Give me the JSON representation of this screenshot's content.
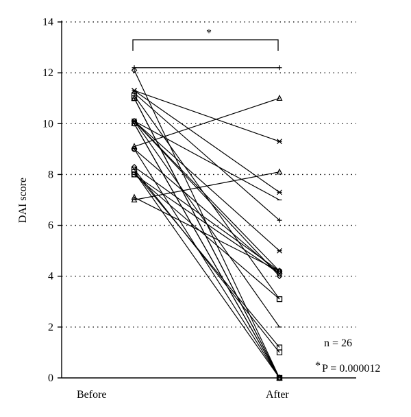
{
  "chart_data": {
    "type": "line",
    "ylabel": "DAI score",
    "xlabel": "",
    "categories": [
      "Before",
      "After"
    ],
    "ylim": [
      0,
      14
    ],
    "yticks": [
      "0",
      "2",
      "4",
      "6",
      "8",
      "10",
      "12",
      "14"
    ],
    "grid": true,
    "significance": {
      "marker": "*",
      "between": [
        "Before",
        "After"
      ]
    },
    "annotations": {
      "n": "n = 26",
      "p_star": "*",
      "p": "P = 0.000012"
    },
    "pairs": [
      {
        "before": 12.2,
        "after": 12.2,
        "marker": "plus"
      },
      {
        "before": 12.1,
        "after": 0.0,
        "marker": "diamond"
      },
      {
        "before": 11.3,
        "after": 9.3,
        "marker": "x"
      },
      {
        "before": 11.3,
        "after": 7.3,
        "marker": "x"
      },
      {
        "before": 11.2,
        "after": 6.2,
        "marker": "plus"
      },
      {
        "before": 11.1,
        "after": 3.1,
        "marker": "square"
      },
      {
        "before": 11.0,
        "after": 0.0,
        "marker": "triangle"
      },
      {
        "before": 11.0,
        "after": 0.0,
        "marker": "square"
      },
      {
        "before": 10.1,
        "after": 7.0,
        "marker": "dash"
      },
      {
        "before": 10.1,
        "after": 5.0,
        "marker": "x"
      },
      {
        "before": 10.1,
        "after": 4.2,
        "marker": "circle"
      },
      {
        "before": 10.1,
        "after": 4.0,
        "marker": "diamond"
      },
      {
        "before": 10.1,
        "after": 2.0,
        "marker": "dash"
      },
      {
        "before": 10.0,
        "after": 0.0,
        "marker": "circle"
      },
      {
        "before": 10.0,
        "after": 0.0,
        "marker": "triangle"
      },
      {
        "before": 9.1,
        "after": 11.0,
        "marker": "triangle"
      },
      {
        "before": 9.0,
        "after": 4.1,
        "marker": "circle"
      },
      {
        "before": 9.0,
        "after": 0.0,
        "marker": "diamond"
      },
      {
        "before": 8.3,
        "after": 4.2,
        "marker": "diamond"
      },
      {
        "before": 8.2,
        "after": 1.0,
        "marker": "square"
      },
      {
        "before": 8.1,
        "after": 1.2,
        "marker": "square"
      },
      {
        "before": 8.1,
        "after": 0.0,
        "marker": "square"
      },
      {
        "before": 8.0,
        "after": 4.1,
        "marker": "circle"
      },
      {
        "before": 8.0,
        "after": 3.1,
        "marker": "square"
      },
      {
        "before": 7.0,
        "after": 8.1,
        "marker": "triangle"
      },
      {
        "before": 7.1,
        "after": 4.2,
        "marker": "triangle"
      }
    ]
  }
}
